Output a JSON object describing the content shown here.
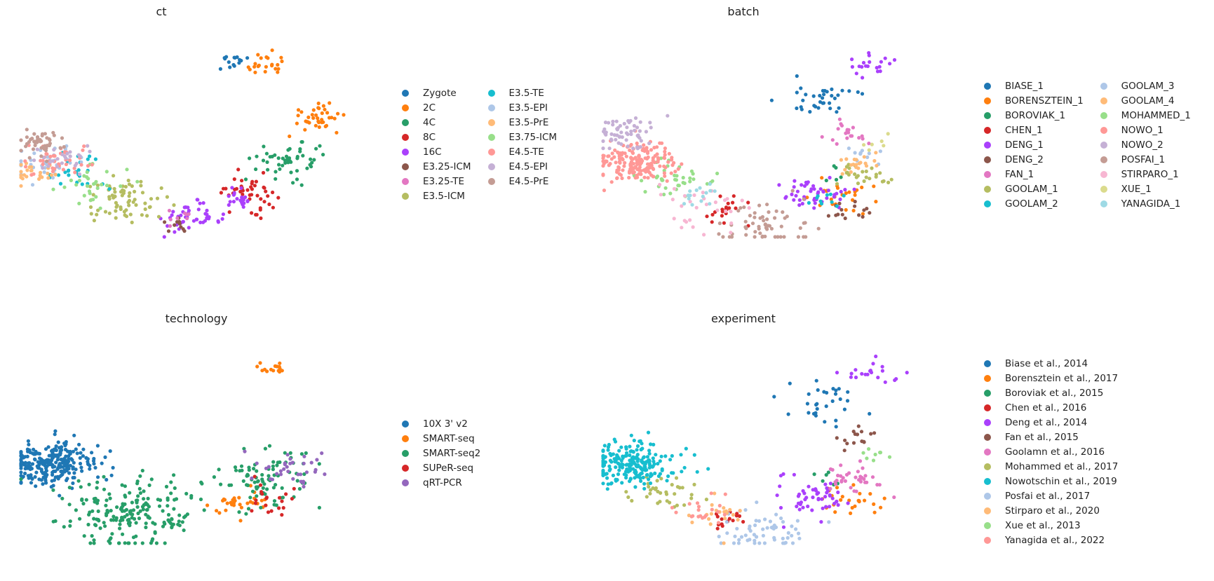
{
  "chart_data": [
    {
      "type": "scatter",
      "title": "ct",
      "xlabel": "",
      "ylabel": "",
      "axes": "off",
      "grid": false,
      "legend_placement": "right",
      "legend_columns": 2,
      "categories": [
        "Zygote",
        "2C",
        "4C",
        "8C",
        "16C",
        "E3.25-ICM",
        "E3.25-TE",
        "E3.5-ICM",
        "E3.5-TE",
        "E3.5-EPI",
        "E3.5-PrE",
        "E3.75-ICM",
        "E4.5-TE",
        "E4.5-EPI",
        "E4.5-PrE"
      ],
      "colors": [
        "#1f77b4",
        "#ff7f0e",
        "#279e68",
        "#d62728",
        "#aa40fc",
        "#8c564b",
        "#e377c2",
        "#b5bd61",
        "#17becf",
        "#aec7e8",
        "#ffbb78",
        "#98df8a",
        "#ff9896",
        "#c5b0d5",
        "#c49c94"
      ],
      "regions": [
        [
          "Zygote",
          6.5,
          8.7,
          0.25,
          15
        ],
        [
          "2C",
          7.6,
          8.5,
          0.35,
          22
        ],
        [
          "2C",
          9.2,
          6.6,
          0.4,
          40
        ],
        [
          "4C",
          8.4,
          4.9,
          0.5,
          50
        ],
        [
          "8C",
          7.0,
          3.7,
          0.45,
          45
        ],
        [
          "16C",
          5.3,
          2.7,
          0.4,
          45
        ],
        [
          "16C",
          6.8,
          3.4,
          0.3,
          20
        ],
        [
          "E3.25-ICM",
          4.7,
          2.5,
          0.25,
          10
        ],
        [
          "E3.25-TE",
          4.9,
          2.7,
          0.2,
          8
        ],
        [
          "E3.5-ICM",
          3.3,
          3.4,
          0.6,
          70
        ],
        [
          "E3.5-TE",
          1.7,
          4.5,
          0.5,
          25
        ],
        [
          "E3.5-EPI",
          0.8,
          4.8,
          0.45,
          35
        ],
        [
          "E3.5-PrE",
          0.4,
          4.5,
          0.35,
          25
        ],
        [
          "E3.75-ICM",
          2.2,
          4.0,
          0.5,
          30
        ],
        [
          "E4.5-TE",
          1.2,
          4.9,
          0.45,
          40
        ],
        [
          "E4.5-EPI",
          1.1,
          5.0,
          0.4,
          25
        ],
        [
          "E4.5-PrE",
          0.6,
          5.6,
          0.35,
          45
        ]
      ]
    },
    {
      "type": "scatter",
      "title": "batch",
      "xlabel": "",
      "ylabel": "",
      "axes": "off",
      "grid": false,
      "legend_placement": "right",
      "legend_columns": 2,
      "categories": [
        "BIASE_1",
        "BORENSZTEIN_1",
        "BOROVIAK_1",
        "CHEN_1",
        "DENG_1",
        "DENG_2",
        "FAN_1",
        "GOOLAM_1",
        "GOOLAM_2",
        "GOOLAM_3",
        "GOOLAM_4",
        "MOHAMMED_1",
        "NOWO_1",
        "NOWO_2",
        "POSFAI_1",
        "STIRPARO_1",
        "XUE_1",
        "YANAGIDA_1"
      ],
      "colors": [
        "#1f77b4",
        "#ff7f0e",
        "#279e68",
        "#d62728",
        "#aa40fc",
        "#8c564b",
        "#e377c2",
        "#b5bd61",
        "#17becf",
        "#aec7e8",
        "#ffbb78",
        "#98df8a",
        "#ff9896",
        "#c5b0d5",
        "#c49c94",
        "#f7b6d2",
        "#dbdb8d",
        "#9edae5"
      ],
      "regions": [
        [
          "BIASE_1",
          6.8,
          7.3,
          0.6,
          35
        ],
        [
          "BORENSZTEIN_1",
          7.5,
          3.5,
          0.5,
          25
        ],
        [
          "BOROVIAK_1",
          7.0,
          4.4,
          0.3,
          5
        ],
        [
          "CHEN_1",
          3.8,
          2.9,
          0.35,
          20
        ],
        [
          "DENG_1",
          6.6,
          3.6,
          0.45,
          45
        ],
        [
          "DENG_1",
          8.3,
          8.5,
          0.35,
          20
        ],
        [
          "DENG_2",
          7.8,
          3.0,
          0.3,
          15
        ],
        [
          "FAN_1",
          7.8,
          6.0,
          0.4,
          20
        ],
        [
          "GOOLAM_1",
          8.0,
          4.3,
          0.35,
          25
        ],
        [
          "GOOLAM_2",
          7.0,
          3.5,
          0.25,
          10
        ],
        [
          "GOOLAM_3",
          8.0,
          5.2,
          0.3,
          10
        ],
        [
          "GOOLAM_4",
          7.9,
          4.8,
          0.3,
          20
        ],
        [
          "MOHAMMED_1",
          2.2,
          4.2,
          0.5,
          40
        ],
        [
          "NOWO_1",
          1.0,
          4.8,
          0.55,
          180
        ],
        [
          "NOWO_2",
          0.8,
          6.0,
          0.45,
          60
        ],
        [
          "POSFAI_1",
          5.0,
          2.4,
          0.6,
          60
        ],
        [
          "STIRPARO_1",
          3.0,
          3.2,
          0.6,
          30
        ],
        [
          "XUE_1",
          8.5,
          5.4,
          0.25,
          6
        ],
        [
          "YANAGIDA_1",
          3.0,
          3.7,
          0.3,
          15
        ]
      ]
    },
    {
      "type": "scatter",
      "title": "technology",
      "xlabel": "",
      "ylabel": "",
      "axes": "off",
      "grid": false,
      "legend_placement": "right",
      "legend_columns": 1,
      "categories": [
        "10X 3' v2",
        "SMART-seq",
        "SMART-seq2",
        "SUPeR-seq",
        "qRT-PCR"
      ],
      "colors": [
        "#1f77b4",
        "#ff7f0e",
        "#279e68",
        "#d62728",
        "#9467bd"
      ],
      "regions": [
        [
          "10X 3' v2",
          0.9,
          5.0,
          0.6,
          250
        ],
        [
          "SMART-seq",
          6.8,
          3.5,
          0.4,
          30
        ],
        [
          "SMART-seq",
          7.8,
          8.6,
          0.3,
          15
        ],
        [
          "SMART-seq2",
          3.3,
          3.2,
          1.0,
          200
        ],
        [
          "SMART-seq2",
          7.5,
          4.5,
          0.8,
          90
        ],
        [
          "SUPeR-seq",
          7.8,
          3.8,
          0.5,
          20
        ],
        [
          "qRT-PCR",
          8.3,
          4.8,
          0.5,
          35
        ]
      ]
    },
    {
      "type": "scatter",
      "title": "experiment",
      "xlabel": "",
      "ylabel": "",
      "axes": "off",
      "grid": false,
      "legend_placement": "right",
      "legend_columns": 1,
      "categories": [
        "Biase et al., 2014",
        "Borensztein et al., 2017",
        "Boroviak et al., 2015",
        "Chen et al., 2016",
        "Deng et al., 2014",
        "Fan et al., 2015",
        "Goolamn et al., 2016",
        "Mohammed et al., 2017",
        "Nowotschin et al., 2019",
        "Posfai et al., 2017",
        "Stirparo et al., 2020",
        "Xue et al., 2013",
        "Yanagida et al., 2022"
      ],
      "colors": [
        "#1f77b4",
        "#ff7f0e",
        "#279e68",
        "#d62728",
        "#aa40fc",
        "#8c564b",
        "#e377c2",
        "#b5bd61",
        "#17becf",
        "#aec7e8",
        "#ffbb78",
        "#98df8a",
        "#ff9896"
      ],
      "regions": [
        [
          "Biase et al., 2014",
          6.8,
          7.3,
          0.6,
          30
        ],
        [
          "Borensztein et al., 2017",
          7.6,
          3.6,
          0.5,
          25
        ],
        [
          "Boroviak et al., 2015",
          7.0,
          4.3,
          0.3,
          6
        ],
        [
          "Chen et al., 2016",
          3.8,
          2.9,
          0.35,
          15
        ],
        [
          "Deng et al., 2014",
          6.6,
          3.7,
          0.5,
          50
        ],
        [
          "Deng et al., 2014",
          8.3,
          8.5,
          0.35,
          20
        ],
        [
          "Fan et al., 2015",
          7.8,
          6.0,
          0.4,
          15
        ],
        [
          "Goolamn et al., 2016",
          7.8,
          4.5,
          0.45,
          35
        ],
        [
          "Mohammed et al., 2017",
          2.0,
          4.0,
          0.45,
          35
        ],
        [
          "Nowotschin et al., 2019",
          0.9,
          5.0,
          0.6,
          220
        ],
        [
          "Posfai et al., 2017",
          5.0,
          2.4,
          0.6,
          60
        ],
        [
          "Stirparo et al., 2020",
          3.5,
          3.1,
          0.5,
          20
        ],
        [
          "Xue et al., 2013",
          8.5,
          5.4,
          0.25,
          8
        ],
        [
          "Yanagida et al., 2022",
          3.0,
          3.3,
          0.4,
          20
        ]
      ]
    }
  ]
}
